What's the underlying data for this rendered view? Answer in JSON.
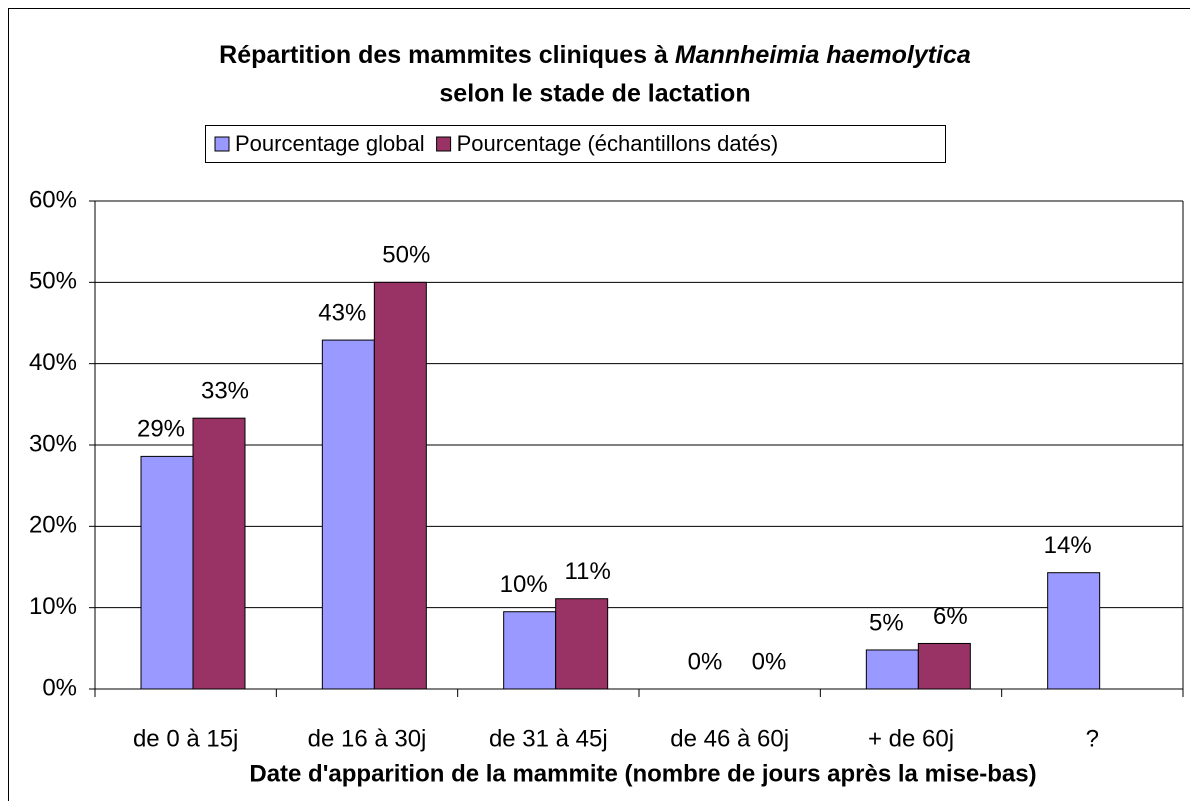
{
  "chart_data": {
    "type": "bar",
    "title": {
      "line1": "Répartition des mammites cliniques à ",
      "italic": "Mannheimia haemolytica",
      "line2": "selon le stade de lactation"
    },
    "x_label": "Date d'apparition de la mammite (nombre de jours après la mise-bas)",
    "categories": [
      "de 0 à 15j",
      "de 16 à 30j",
      "de 31 à 45j",
      "de 46 à 60j",
      "+ de 60j",
      "?"
    ],
    "series": [
      {
        "name": "Pourcentage global",
        "color": "#9999ff",
        "values": [
          28.6,
          42.9,
          9.5,
          0,
          4.8,
          14.3
        ],
        "value_labels": [
          "29%",
          "43%",
          "10%",
          "0%",
          "5%",
          "14%"
        ]
      },
      {
        "name": "Pourcentage (échantillons datés)",
        "color": "#993366",
        "values": [
          33.3,
          50,
          11.1,
          0,
          5.6,
          null
        ],
        "value_labels": [
          "33%",
          "50%",
          "11%",
          "0%",
          "6%",
          null
        ]
      }
    ],
    "ylim": [
      0,
      60
    ],
    "yticks": [
      {
        "value": 0,
        "label": "0%"
      },
      {
        "value": 10,
        "label": "10%"
      },
      {
        "value": 20,
        "label": "20%"
      },
      {
        "value": 30,
        "label": "30%"
      },
      {
        "value": 40,
        "label": "40%"
      },
      {
        "value": 50,
        "label": "50%"
      },
      {
        "value": 60,
        "label": "60%"
      }
    ],
    "grid": true,
    "legend": "top"
  }
}
